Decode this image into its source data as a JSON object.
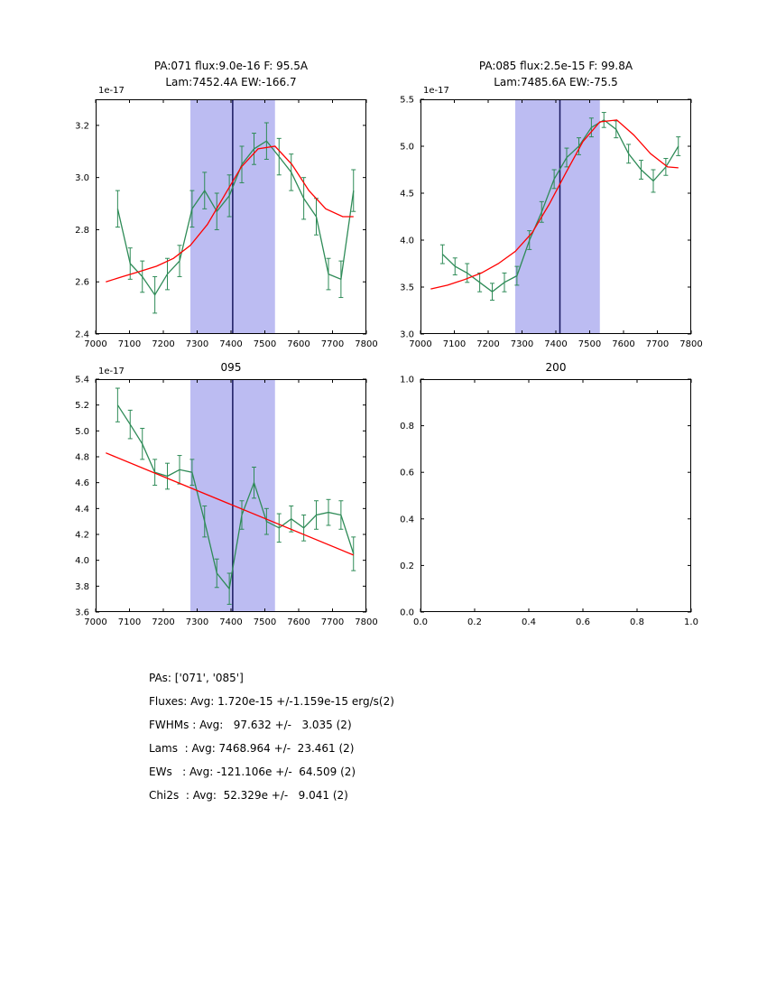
{
  "figure": {
    "background": "#ffffff"
  },
  "colors": {
    "data_line": "#2e8b57",
    "fit_line": "#ff0000",
    "band": "#bcbcf2",
    "vline": "#17175e",
    "frame": "#000000"
  },
  "chart_data": [
    {
      "type": "line",
      "title": "PA:071 flux:9.0e-16 F: 95.5A",
      "subtitle": "Lam:7452.4A EW:-166.7",
      "y_offset_label": "1e-17",
      "xlim": [
        7000,
        7800
      ],
      "ylim": [
        2.4,
        3.3
      ],
      "xticks": [
        7000,
        7100,
        7200,
        7300,
        7400,
        7500,
        7600,
        7700,
        7800
      ],
      "xtick_labels": [
        "7000",
        "7100",
        "7200",
        "7300",
        "7400",
        "7500",
        "7600",
        "7700",
        "7800"
      ],
      "yticks": [
        2.4,
        2.6,
        2.8,
        3.0,
        3.2
      ],
      "ytick_labels": [
        "2.4",
        "2.6",
        "2.8",
        "3.0",
        "3.2"
      ],
      "grid": false,
      "band": {
        "x0": 7280,
        "x1": 7530,
        "color": "#bcbcf2"
      },
      "vline": {
        "x": 7405,
        "color": "#17175e"
      },
      "series": [
        {
          "name": "spectrum",
          "color": "#2e8b57",
          "x": [
            7065,
            7102,
            7138,
            7175,
            7212,
            7248,
            7285,
            7322,
            7358,
            7395,
            7432,
            7468,
            7505,
            7542,
            7578,
            7615,
            7652,
            7688,
            7725,
            7762
          ],
          "y": [
            2.88,
            2.67,
            2.62,
            2.55,
            2.63,
            2.68,
            2.88,
            2.95,
            2.87,
            2.93,
            3.05,
            3.11,
            3.14,
            3.08,
            3.02,
            2.92,
            2.85,
            2.63,
            2.61,
            2.95
          ],
          "yerr": [
            0.07,
            0.06,
            0.06,
            0.07,
            0.06,
            0.06,
            0.07,
            0.07,
            0.07,
            0.08,
            0.07,
            0.06,
            0.07,
            0.07,
            0.07,
            0.08,
            0.07,
            0.06,
            0.07,
            0.08
          ]
        },
        {
          "name": "fit",
          "color": "#ff0000",
          "x": [
            7030,
            7080,
            7130,
            7180,
            7230,
            7280,
            7330,
            7380,
            7430,
            7480,
            7530,
            7580,
            7630,
            7680,
            7730,
            7762
          ],
          "y": [
            2.6,
            2.62,
            2.64,
            2.66,
            2.69,
            2.74,
            2.82,
            2.93,
            3.04,
            3.11,
            3.12,
            3.05,
            2.95,
            2.88,
            2.85,
            2.85
          ]
        }
      ]
    },
    {
      "type": "line",
      "title": "PA:085 flux:2.5e-15 F: 99.8A",
      "subtitle": "Lam:7485.6A EW:-75.5",
      "y_offset_label": "1e-17",
      "xlim": [
        7000,
        7800
      ],
      "ylim": [
        3.0,
        5.5
      ],
      "xticks": [
        7000,
        7100,
        7200,
        7300,
        7400,
        7500,
        7600,
        7700,
        7800
      ],
      "xtick_labels": [
        "7000",
        "7100",
        "7200",
        "7300",
        "7400",
        "7500",
        "7600",
        "7700",
        "7800"
      ],
      "yticks": [
        3.0,
        3.5,
        4.0,
        4.5,
        5.0,
        5.5
      ],
      "ytick_labels": [
        "3.0",
        "3.5",
        "4.0",
        "4.5",
        "5.0",
        "5.5"
      ],
      "grid": false,
      "band": {
        "x0": 7280,
        "x1": 7530,
        "color": "#bcbcf2"
      },
      "vline": {
        "x": 7412,
        "color": "#17175e"
      },
      "series": [
        {
          "name": "spectrum",
          "color": "#2e8b57",
          "x": [
            7065,
            7102,
            7138,
            7175,
            7212,
            7248,
            7285,
            7322,
            7358,
            7395,
            7432,
            7468,
            7505,
            7542,
            7578,
            7615,
            7652,
            7688,
            7725,
            7762
          ],
          "y": [
            3.85,
            3.72,
            3.65,
            3.55,
            3.45,
            3.55,
            3.62,
            4.0,
            4.3,
            4.65,
            4.88,
            5.0,
            5.2,
            5.28,
            5.18,
            4.92,
            4.75,
            4.63,
            4.78,
            5.0
          ],
          "yerr": [
            0.1,
            0.09,
            0.1,
            0.1,
            0.09,
            0.1,
            0.1,
            0.1,
            0.11,
            0.1,
            0.1,
            0.09,
            0.1,
            0.08,
            0.09,
            0.1,
            0.1,
            0.12,
            0.09,
            0.1
          ]
        },
        {
          "name": "fit",
          "color": "#ff0000",
          "x": [
            7030,
            7080,
            7130,
            7180,
            7230,
            7280,
            7330,
            7380,
            7430,
            7480,
            7530,
            7580,
            7630,
            7680,
            7730,
            7762
          ],
          "y": [
            3.48,
            3.52,
            3.58,
            3.65,
            3.75,
            3.88,
            4.08,
            4.38,
            4.72,
            5.05,
            5.26,
            5.28,
            5.12,
            4.92,
            4.78,
            4.77
          ]
        }
      ]
    },
    {
      "type": "line",
      "title": "095",
      "subtitle": "",
      "y_offset_label": "1e-17",
      "xlim": [
        7000,
        7800
      ],
      "ylim": [
        3.6,
        5.4
      ],
      "xticks": [
        7000,
        7100,
        7200,
        7300,
        7400,
        7500,
        7600,
        7700,
        7800
      ],
      "xtick_labels": [
        "7000",
        "7100",
        "7200",
        "7300",
        "7400",
        "7500",
        "7600",
        "7700",
        "7800"
      ],
      "yticks": [
        3.6,
        3.8,
        4.0,
        4.2,
        4.4,
        4.6,
        4.8,
        5.0,
        5.2,
        5.4
      ],
      "ytick_labels": [
        "3.6",
        "3.8",
        "4.0",
        "4.2",
        "4.4",
        "4.6",
        "4.8",
        "5.0",
        "5.2",
        "5.4"
      ],
      "grid": false,
      "band": {
        "x0": 7280,
        "x1": 7530,
        "color": "#bcbcf2"
      },
      "vline": {
        "x": 7405,
        "color": "#17175e"
      },
      "series": [
        {
          "name": "spectrum",
          "color": "#2e8b57",
          "x": [
            7065,
            7102,
            7138,
            7175,
            7212,
            7248,
            7285,
            7322,
            7358,
            7395,
            7432,
            7468,
            7505,
            7542,
            7578,
            7615,
            7652,
            7688,
            7725,
            7762
          ],
          "y": [
            5.2,
            5.05,
            4.9,
            4.68,
            4.65,
            4.7,
            4.68,
            4.3,
            3.9,
            3.78,
            4.35,
            4.6,
            4.3,
            4.25,
            4.32,
            4.25,
            4.35,
            4.37,
            4.35,
            4.05
          ],
          "yerr": [
            0.13,
            0.11,
            0.12,
            0.1,
            0.1,
            0.11,
            0.1,
            0.12,
            0.11,
            0.12,
            0.11,
            0.12,
            0.1,
            0.11,
            0.1,
            0.1,
            0.11,
            0.1,
            0.11,
            0.13
          ]
        },
        {
          "name": "fit",
          "color": "#ff0000",
          "x": [
            7030,
            7762
          ],
          "y": [
            4.83,
            4.04
          ]
        }
      ]
    },
    {
      "type": "line",
      "title": "200",
      "subtitle": "",
      "y_offset_label": "",
      "xlim": [
        0,
        1
      ],
      "ylim": [
        0,
        1
      ],
      "xticks": [
        0,
        0.2,
        0.4,
        0.6,
        0.8,
        1.0
      ],
      "xtick_labels": [
        "0.0",
        "0.2",
        "0.4",
        "0.6",
        "0.8",
        "1.0"
      ],
      "yticks": [
        0,
        0.2,
        0.4,
        0.6,
        0.8,
        1.0
      ],
      "ytick_labels": [
        "0.0",
        "0.2",
        "0.4",
        "0.6",
        "0.8",
        "1.0"
      ],
      "grid": false,
      "band": null,
      "vline": null,
      "series": []
    }
  ],
  "summary": {
    "lines": [
      "PAs: ['071', '085']",
      "Fluxes: Avg: 1.720e-15 +/-1.159e-15 erg/s(2)",
      "FWHMs : Avg:   97.632 +/-   3.035 (2)",
      "Lams  : Avg: 7468.964 +/-  23.461 (2)",
      "EWs   : Avg: -121.106e +/-  64.509 (2)",
      "Chi2s  : Avg:  52.329e +/-   9.041 (2)"
    ]
  }
}
